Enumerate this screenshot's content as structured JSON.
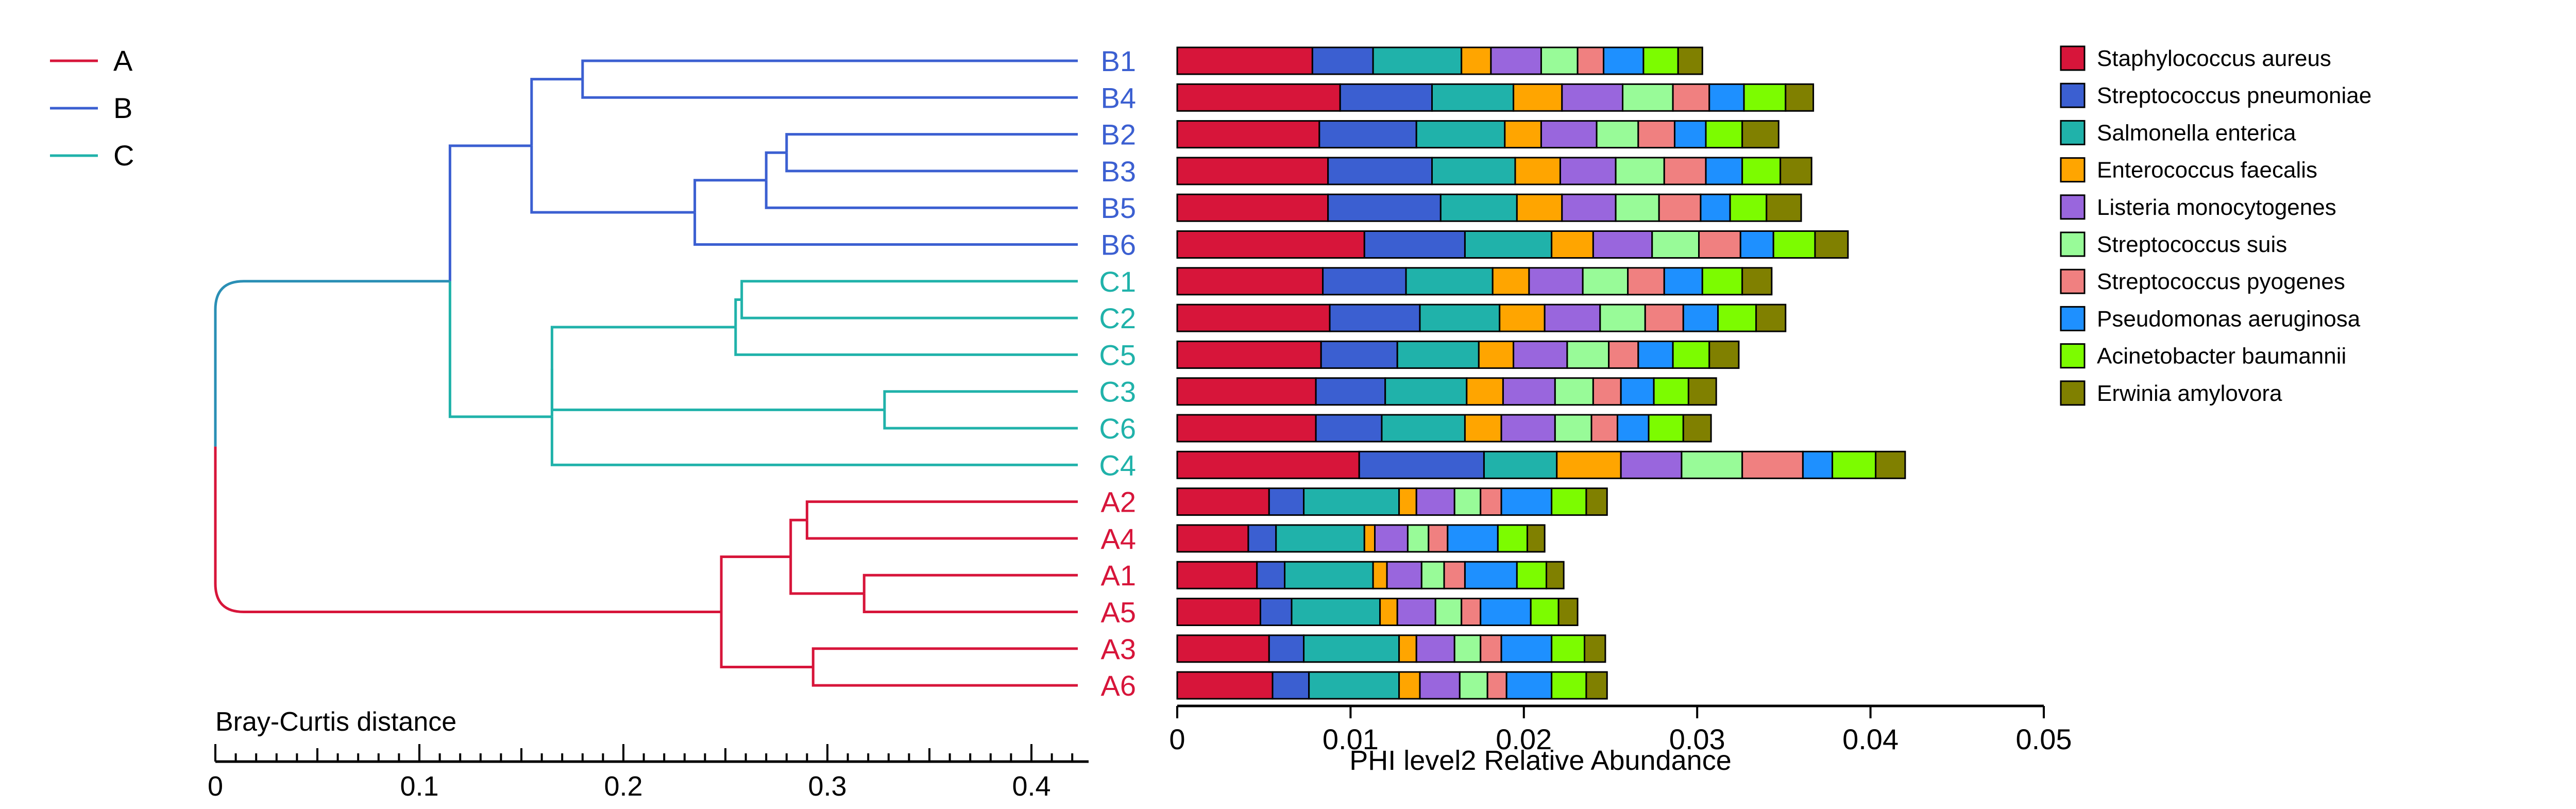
{
  "chart_data": [
    {
      "type": "dendrogram",
      "axis_label": "Bray-Curtis distance",
      "x_ticks": [
        "0",
        "0.1",
        "0.2",
        "0.3",
        "0.4"
      ],
      "xlim": [
        0,
        0.425
      ],
      "groups": [
        {
          "name": "A",
          "color": "#d7153a"
        },
        {
          "name": "B",
          "color": "#3b5fd1"
        },
        {
          "name": "C",
          "color": "#20b2aa"
        }
      ],
      "root_color": "#2a8fb5",
      "leaves": [
        "B1",
        "B4",
        "B2",
        "B3",
        "B5",
        "B6",
        "C1",
        "C2",
        "C5",
        "C3",
        "C6",
        "C4",
        "A2",
        "A4",
        "A1",
        "A5",
        "A3",
        "A6"
      ],
      "merges": [
        {
          "id": "m1",
          "children": [
            "B1",
            "B4"
          ],
          "height": 0.18,
          "group": "B"
        },
        {
          "id": "m2",
          "children": [
            "B2",
            "B3"
          ],
          "height": 0.28,
          "group": "B"
        },
        {
          "id": "m3",
          "children": [
            "m2",
            "B5"
          ],
          "height": 0.27,
          "group": "B"
        },
        {
          "id": "m4",
          "children": [
            "m3",
            "B6"
          ],
          "height": 0.235,
          "group": "B"
        },
        {
          "id": "m5",
          "children": [
            "m1",
            "m4"
          ],
          "height": 0.155,
          "group": "B"
        },
        {
          "id": "m6",
          "children": [
            "C1",
            "C2"
          ],
          "height": 0.258,
          "group": "C"
        },
        {
          "id": "m7",
          "children": [
            "m6",
            "C5"
          ],
          "height": 0.255,
          "group": "C"
        },
        {
          "id": "m8",
          "children": [
            "C3",
            "C6"
          ],
          "height": 0.328,
          "group": "C"
        },
        {
          "id": "m9",
          "children": [
            "m7",
            "m8"
          ],
          "height": 0.165,
          "group": "C"
        },
        {
          "id": "m10",
          "children": [
            "m9",
            "C4"
          ],
          "height": 0.165,
          "group": "C"
        },
        {
          "id": "m11",
          "children": [
            "m5",
            "m10"
          ],
          "height": 0.115,
          "group": "BC"
        },
        {
          "id": "m12",
          "children": [
            "A2",
            "A4"
          ],
          "height": 0.29,
          "group": "A"
        },
        {
          "id": "m13",
          "children": [
            "A1",
            "A5"
          ],
          "height": 0.318,
          "group": "A"
        },
        {
          "id": "m14",
          "children": [
            "m12",
            "m13"
          ],
          "height": 0.282,
          "group": "A"
        },
        {
          "id": "m15",
          "children": [
            "A3",
            "A6"
          ],
          "height": 0.293,
          "group": "A"
        },
        {
          "id": "m16",
          "children": [
            "m14",
            "m15"
          ],
          "height": 0.248,
          "group": "A"
        },
        {
          "id": "root",
          "children": [
            "m11",
            "m16"
          ],
          "height": 0.0,
          "group": "root"
        }
      ]
    },
    {
      "type": "stacked-bar-horizontal",
      "xlabel": "PHI level2 Relative Abundance",
      "xlim": [
        0,
        0.05
      ],
      "x_ticks": [
        "0",
        "0.01",
        "0.02",
        "0.03",
        "0.04",
        "0.05"
      ],
      "categories": [
        "B1",
        "B4",
        "B2",
        "B3",
        "B5",
        "B6",
        "C1",
        "C2",
        "C5",
        "C3",
        "C6",
        "C4",
        "A2",
        "A4",
        "A1",
        "A5",
        "A3",
        "A6"
      ],
      "legend_position": "right",
      "series": [
        {
          "name": "Staphylococcus aureus",
          "color": "#d7153a",
          "values": [
            0.0078,
            0.0094,
            0.0082,
            0.0087,
            0.0087,
            0.0108,
            0.0084,
            0.0088,
            0.0083,
            0.008,
            0.008,
            0.0105,
            0.0053,
            0.0041,
            0.0046,
            0.0048,
            0.0053,
            0.0055
          ]
        },
        {
          "name": "Streptococcus pneumoniae",
          "color": "#3b5fd1",
          "values": [
            0.0035,
            0.0053,
            0.0056,
            0.006,
            0.0065,
            0.0058,
            0.0048,
            0.0052,
            0.0044,
            0.004,
            0.0038,
            0.0072,
            0.002,
            0.0016,
            0.0016,
            0.0018,
            0.002,
            0.0021
          ]
        },
        {
          "name": "Salmonella enterica",
          "color": "#20b2aa",
          "values": [
            0.0051,
            0.0047,
            0.0051,
            0.0048,
            0.0044,
            0.005,
            0.005,
            0.0046,
            0.0047,
            0.0047,
            0.0048,
            0.0042,
            0.0055,
            0.0051,
            0.0051,
            0.0051,
            0.0055,
            0.0052
          ]
        },
        {
          "name": "Enterococcus faecalis",
          "color": "#ffa500",
          "values": [
            0.0017,
            0.0028,
            0.0021,
            0.0026,
            0.0026,
            0.0024,
            0.0021,
            0.0026,
            0.002,
            0.0021,
            0.0021,
            0.0037,
            0.001,
            0.0006,
            0.0008,
            0.001,
            0.001,
            0.0012
          ]
        },
        {
          "name": "Listeria monocytogenes",
          "color": "#9966dd",
          "values": [
            0.0029,
            0.0035,
            0.0032,
            0.0032,
            0.0031,
            0.0034,
            0.0031,
            0.0032,
            0.0031,
            0.003,
            0.0031,
            0.0035,
            0.0022,
            0.0019,
            0.002,
            0.0022,
            0.0022,
            0.0023
          ]
        },
        {
          "name": "Streptococcus suis",
          "color": "#98fb98",
          "values": [
            0.0021,
            0.0029,
            0.0024,
            0.0028,
            0.0025,
            0.0027,
            0.0026,
            0.0026,
            0.0024,
            0.0022,
            0.0021,
            0.0035,
            0.0015,
            0.0012,
            0.0013,
            0.0015,
            0.0015,
            0.0016
          ]
        },
        {
          "name": "Streptococcus pyogenes",
          "color": "#f08080",
          "values": [
            0.0015,
            0.0021,
            0.0021,
            0.0024,
            0.0024,
            0.0024,
            0.0021,
            0.0022,
            0.0017,
            0.0016,
            0.0015,
            0.0035,
            0.0012,
            0.0011,
            0.0012,
            0.0011,
            0.0012,
            0.0011
          ]
        },
        {
          "name": "Pseudomonas aeruginosa",
          "color": "#1e90ff",
          "values": [
            0.0023,
            0.002,
            0.0018,
            0.0021,
            0.0017,
            0.0019,
            0.0022,
            0.002,
            0.002,
            0.0019,
            0.0018,
            0.0017,
            0.0029,
            0.0029,
            0.003,
            0.0029,
            0.0029,
            0.0026
          ]
        },
        {
          "name": "Acinetobacter baumannii",
          "color": "#7cfc00",
          "values": [
            0.002,
            0.0024,
            0.0021,
            0.0022,
            0.0021,
            0.0024,
            0.0023,
            0.0022,
            0.0021,
            0.002,
            0.002,
            0.0025,
            0.002,
            0.0017,
            0.0017,
            0.0016,
            0.0019,
            0.002
          ]
        },
        {
          "name": "Erwinia amylovora",
          "color": "#808000",
          "values": [
            0.0014,
            0.0016,
            0.0021,
            0.0018,
            0.002,
            0.0019,
            0.0017,
            0.0017,
            0.0017,
            0.0016,
            0.0016,
            0.0017,
            0.0012,
            0.001,
            0.001,
            0.0011,
            0.0012,
            0.0012
          ]
        }
      ]
    }
  ]
}
